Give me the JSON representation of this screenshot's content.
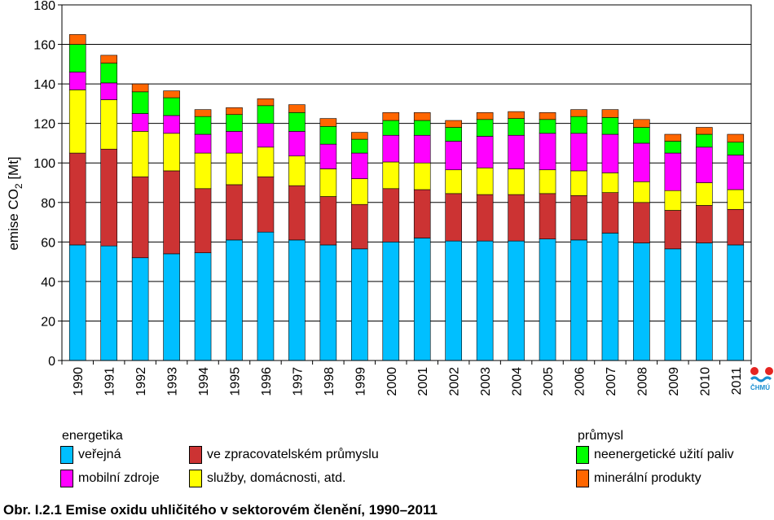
{
  "chart_data": {
    "type": "bar",
    "stacked": true,
    "ylabel": "emise CO",
    "ylabel_sub": "2",
    "ylabel_unit": " [Mt]",
    "ylim": [
      0,
      180
    ],
    "yticks": [
      0,
      20,
      40,
      60,
      80,
      100,
      120,
      140,
      160,
      180
    ],
    "grid": true,
    "categories": [
      "1990",
      "1991",
      "1992",
      "1993",
      "1994",
      "1995",
      "1996",
      "1997",
      "1998",
      "1999",
      "2000",
      "2001",
      "2002",
      "2003",
      "2004",
      "2005",
      "2006",
      "2007",
      "2008",
      "2009",
      "2010",
      "2011"
    ],
    "series": [
      {
        "name": "veřejná",
        "color": "#00bfff",
        "values": [
          58.5,
          58,
          52,
          54,
          54.5,
          61,
          65,
          61,
          58.5,
          56.5,
          60,
          62,
          60.5,
          60.5,
          60.5,
          61.5,
          61,
          64.5,
          59.5,
          56.5,
          59.5,
          58.5
        ]
      },
      {
        "name": "ve zpracovatelském průmyslu",
        "color": "#cc3333",
        "values": [
          46.5,
          49,
          41,
          42,
          32.5,
          28,
          28,
          27.5,
          24.5,
          22.5,
          27,
          24.5,
          24,
          23.5,
          23.5,
          23,
          22.5,
          20.5,
          20.5,
          19.5,
          19,
          18
        ]
      },
      {
        "name": "služby, domácnosti, atd.",
        "color": "#ffff00",
        "values": [
          32,
          25,
          23,
          19,
          18,
          16,
          15,
          15,
          14,
          13,
          13.5,
          13.5,
          12,
          13.5,
          13,
          12,
          12.5,
          10,
          10.5,
          10,
          11.5,
          10
        ]
      },
      {
        "name": "mobilní zdroje",
        "color": "#ff00ff",
        "values": [
          9,
          8.5,
          9,
          9,
          9.5,
          11,
          12,
          12.5,
          12.5,
          13,
          13.5,
          14,
          14.5,
          16,
          17,
          18.5,
          19,
          19.5,
          19.5,
          19,
          18,
          17.5
        ]
      },
      {
        "name": "neenergetické užití paliv",
        "color": "#00ff00",
        "values": [
          14,
          10,
          11,
          9,
          9,
          8.5,
          9,
          9.5,
          9,
          7,
          7.5,
          7.5,
          7,
          8.5,
          8.5,
          7,
          8.5,
          8.5,
          8,
          6,
          6.5,
          6.5
        ]
      },
      {
        "name": "minerální produkty",
        "color": "#ff6600",
        "values": [
          5,
          4,
          4,
          3.5,
          3.5,
          3.5,
          3.5,
          4,
          4,
          3.5,
          4,
          4,
          3.5,
          3.5,
          3.5,
          3.5,
          3.5,
          4,
          4,
          3.5,
          3.5,
          4
        ]
      }
    ],
    "legend_groups": [
      {
        "title": "energetika"
      },
      {
        "title": "průmysl"
      }
    ],
    "caption": "Obr. I.2.1  Emise oxidu uhličitého v sektorovém členění, 1990–2011",
    "logo_text": "ČHMÚ"
  }
}
